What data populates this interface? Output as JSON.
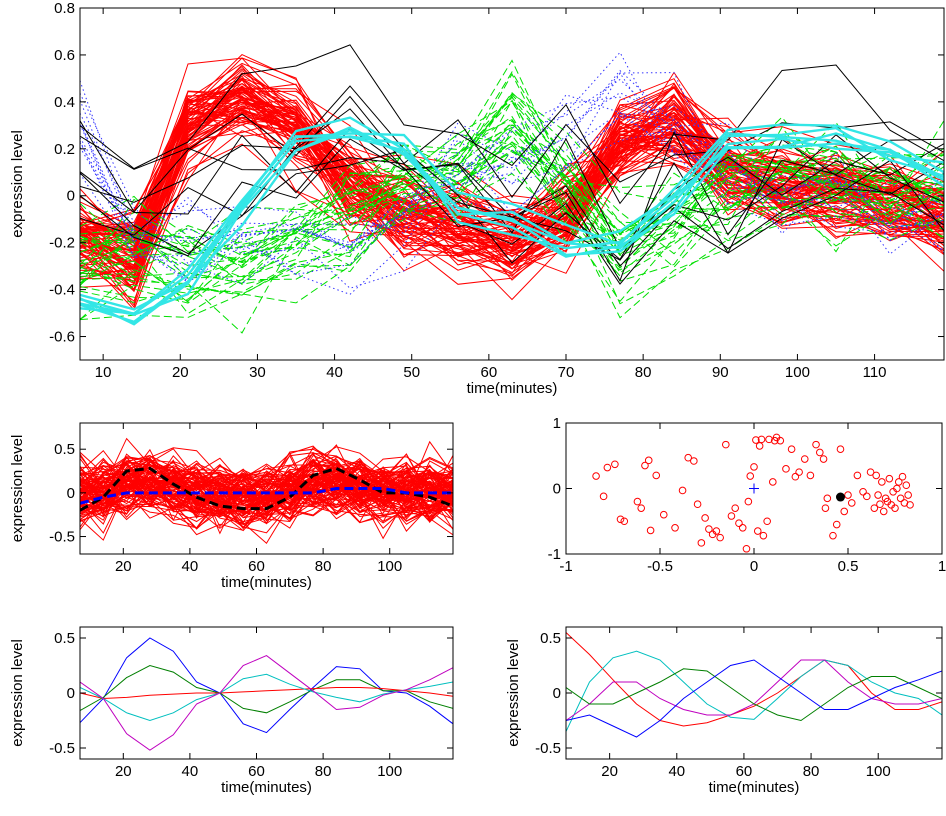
{
  "chart_data": [
    {
      "id": "top",
      "type": "line",
      "title": "",
      "xlabel": "time(minutes)",
      "ylabel": "expression level",
      "xlim": [
        7,
        119
      ],
      "ylim": [
        -0.7,
        0.8
      ],
      "xticks": [
        10,
        20,
        30,
        40,
        50,
        60,
        70,
        80,
        90,
        100,
        110
      ],
      "yticks": [
        -0.6,
        -0.4,
        -0.2,
        0,
        0.2,
        0.4,
        0.6,
        0.8
      ],
      "x": [
        7,
        14,
        21,
        28,
        35,
        42,
        49,
        56,
        63,
        70,
        77,
        84,
        91,
        98,
        105,
        112,
        119
      ],
      "groups": [
        {
          "color": "#ff0000",
          "style": "solid",
          "count": 80,
          "template": [
            -0.2,
            -0.28,
            0.3,
            0.4,
            0.28,
            0.05,
            -0.1,
            -0.15,
            -0.2,
            -0.1,
            0.2,
            0.3,
            0.1,
            0.03,
            0.02,
            -0.05,
            -0.1
          ],
          "noise": 0.12
        },
        {
          "color": "#00e000",
          "style": "dashed",
          "count": 30,
          "template": [
            -0.3,
            -0.25,
            -0.3,
            -0.3,
            -0.2,
            -0.1,
            0.05,
            0.1,
            0.3,
            0.05,
            -0.2,
            -0.1,
            0.0,
            0.08,
            0.05,
            0.05,
            0.05
          ],
          "noise": 0.15
        },
        {
          "color": "#3333ff",
          "style": "dotted",
          "count": 12,
          "template": [
            0.3,
            -0.2,
            -0.2,
            -0.2,
            -0.15,
            -0.2,
            -0.1,
            0.1,
            0.1,
            0.3,
            0.5,
            0.3,
            0.1,
            0.0,
            0.0,
            -0.1,
            -0.1
          ],
          "noise": 0.15
        },
        {
          "color": "#000000",
          "style": "solid",
          "count": 8,
          "template": [
            0.2,
            0.0,
            0.0,
            0.1,
            0.2,
            0.25,
            0.2,
            0.05,
            -0.05,
            0.0,
            -0.2,
            0.1,
            0.0,
            0.1,
            0.2,
            0.1,
            0.1
          ],
          "noise": 0.2
        },
        {
          "color": "#33e6e6",
          "style": "thick",
          "count": 6,
          "template": [
            -0.45,
            -0.5,
            -0.35,
            -0.05,
            0.25,
            0.3,
            0.2,
            -0.05,
            -0.1,
            -0.2,
            -0.2,
            0.0,
            0.22,
            0.25,
            0.25,
            0.2,
            0.1
          ],
          "noise": 0.05
        }
      ]
    },
    {
      "id": "mid-left",
      "type": "line",
      "title": "",
      "xlabel": "time(minutes)",
      "ylabel": "expression level",
      "xlim": [
        7,
        119
      ],
      "ylim": [
        -0.7,
        0.8
      ],
      "xticks": [
        20,
        40,
        60,
        80,
        100
      ],
      "yticks": [
        -0.5,
        0,
        0.5
      ],
      "x": [
        7,
        14,
        21,
        28,
        35,
        42,
        49,
        56,
        63,
        70,
        77,
        84,
        91,
        98,
        105,
        112,
        119
      ],
      "groups": [
        {
          "color": "#ff0000",
          "style": "solid",
          "count": 110,
          "template": [
            0.0,
            0.0,
            0.1,
            0.1,
            0.05,
            0.0,
            -0.05,
            -0.05,
            -0.05,
            0.0,
            0.1,
            0.1,
            0.05,
            0.0,
            0.0,
            0.0,
            0.0
          ],
          "noise": 0.25
        }
      ],
      "mean_series": [
        {
          "color": "#000000",
          "style": "dashed",
          "values": [
            -0.2,
            -0.05,
            0.25,
            0.28,
            0.1,
            -0.05,
            -0.15,
            -0.18,
            -0.18,
            -0.05,
            0.2,
            0.28,
            0.15,
            0.0,
            0.0,
            -0.05,
            -0.15
          ]
        },
        {
          "color": "#0000ff",
          "style": "dashed",
          "values": [
            -0.12,
            -0.05,
            0.0,
            0.0,
            0.0,
            0.0,
            0.0,
            0.0,
            0.0,
            0.0,
            0.0,
            0.05,
            0.05,
            0.05,
            0.0,
            0.0,
            0.0
          ]
        }
      ]
    },
    {
      "id": "mid-right",
      "type": "scatter",
      "title": "",
      "xlabel": "",
      "ylabel": "",
      "xlim": [
        -1,
        1
      ],
      "ylim": [
        -1,
        1
      ],
      "xticks": [
        -1,
        -0.5,
        0,
        0.5,
        1
      ],
      "yticks": [
        -1,
        0,
        1
      ],
      "points": [
        [
          -0.84,
          0.19
        ],
        [
          -0.8,
          -0.12
        ],
        [
          -0.78,
          0.32
        ],
        [
          -0.74,
          0.37
        ],
        [
          -0.71,
          -0.47
        ],
        [
          -0.69,
          -0.5
        ],
        [
          -0.62,
          -0.2
        ],
        [
          -0.6,
          -0.3
        ],
        [
          -0.58,
          0.35
        ],
        [
          -0.56,
          0.43
        ],
        [
          -0.55,
          -0.64
        ],
        [
          -0.52,
          0.2
        ],
        [
          -0.48,
          -0.4
        ],
        [
          -0.42,
          -0.6
        ],
        [
          -0.38,
          -0.03
        ],
        [
          -0.35,
          0.47
        ],
        [
          -0.32,
          0.42
        ],
        [
          -0.3,
          -0.24
        ],
        [
          -0.28,
          -0.83
        ],
        [
          -0.26,
          -0.45
        ],
        [
          -0.24,
          -0.62
        ],
        [
          -0.22,
          -0.7
        ],
        [
          -0.2,
          -0.65
        ],
        [
          -0.18,
          -0.75
        ],
        [
          -0.15,
          0.67
        ],
        [
          -0.12,
          -0.42
        ],
        [
          -0.1,
          -0.3
        ],
        [
          -0.08,
          -0.53
        ],
        [
          -0.06,
          -0.6
        ],
        [
          -0.04,
          -0.92
        ],
        [
          -0.03,
          -0.2
        ],
        [
          -0.02,
          0.19
        ],
        [
          0.0,
          0.33
        ],
        [
          0.01,
          0.74
        ],
        [
          0.02,
          -0.65
        ],
        [
          0.03,
          0.65
        ],
        [
          0.04,
          0.75
        ],
        [
          0.05,
          -0.72
        ],
        [
          0.07,
          -0.5
        ],
        [
          0.08,
          0.75
        ],
        [
          0.1,
          0.1
        ],
        [
          0.11,
          0.73
        ],
        [
          0.12,
          0.78
        ],
        [
          0.14,
          0.73
        ],
        [
          0.17,
          0.3
        ],
        [
          0.2,
          0.6
        ],
        [
          0.22,
          0.18
        ],
        [
          0.24,
          0.25
        ],
        [
          0.27,
          0.45
        ],
        [
          0.3,
          0.2
        ],
        [
          0.33,
          0.67
        ],
        [
          0.35,
          0.55
        ],
        [
          0.37,
          0.45
        ],
        [
          0.38,
          -0.3
        ],
        [
          0.39,
          -0.15
        ],
        [
          0.42,
          -0.72
        ],
        [
          0.44,
          -0.55
        ],
        [
          0.46,
          0.6
        ],
        [
          0.48,
          -0.35
        ],
        [
          0.5,
          -0.1
        ],
        [
          0.52,
          -0.22
        ],
        [
          0.55,
          0.2
        ],
        [
          0.58,
          -0.05
        ],
        [
          0.6,
          -0.12
        ],
        [
          0.62,
          0.25
        ],
        [
          0.64,
          -0.3
        ],
        [
          0.65,
          0.2
        ],
        [
          0.66,
          -0.1
        ],
        [
          0.67,
          -0.24
        ],
        [
          0.68,
          0.1
        ],
        [
          0.69,
          -0.35
        ],
        [
          0.7,
          -0.15
        ],
        [
          0.71,
          -0.2
        ],
        [
          0.72,
          0.15
        ],
        [
          0.73,
          -0.25
        ],
        [
          0.74,
          -0.05
        ],
        [
          0.75,
          -0.3
        ],
        [
          0.76,
          0.0
        ],
        [
          0.77,
          0.1
        ],
        [
          0.78,
          -0.15
        ],
        [
          0.79,
          0.18
        ],
        [
          0.8,
          -0.22
        ],
        [
          0.81,
          0.05
        ],
        [
          0.82,
          -0.1
        ],
        [
          0.83,
          -0.25
        ]
      ],
      "marker_color": "#ff0000",
      "origin_marker": {
        "x": 0.0,
        "y": 0.0,
        "color": "#0000ff"
      },
      "highlight": {
        "x": 0.46,
        "y": -0.13,
        "color": "#000000"
      }
    },
    {
      "id": "bottom-left",
      "type": "line",
      "title": "",
      "xlabel": "time(minutes)",
      "ylabel": "expression level",
      "xlim": [
        7,
        119
      ],
      "ylim": [
        -0.6,
        0.6
      ],
      "xticks": [
        20,
        40,
        60,
        80,
        100
      ],
      "yticks": [
        -0.5,
        0,
        0.5
      ],
      "x": [
        7,
        14,
        21,
        28,
        35,
        42,
        49,
        56,
        63,
        70,
        77,
        84,
        91,
        98,
        105,
        112,
        119
      ],
      "series": [
        {
          "color": "#0000ff",
          "values": [
            -0.27,
            -0.05,
            0.32,
            0.5,
            0.38,
            0.1,
            0.0,
            -0.28,
            -0.36,
            -0.15,
            0.05,
            0.24,
            0.22,
            0.02,
            0.0,
            -0.12,
            -0.28
          ]
        },
        {
          "color": "#007f00",
          "values": [
            -0.16,
            -0.04,
            0.14,
            0.25,
            0.19,
            0.05,
            0.0,
            -0.14,
            -0.18,
            -0.08,
            0.03,
            0.12,
            0.12,
            0.02,
            0.02,
            -0.08,
            -0.14
          ]
        },
        {
          "color": "#ff0000",
          "values": [
            0.0,
            -0.05,
            -0.04,
            -0.02,
            -0.01,
            0.0,
            0.0,
            0.01,
            0.02,
            0.03,
            0.04,
            0.05,
            0.05,
            0.04,
            0.02,
            0.0,
            -0.03
          ]
        },
        {
          "color": "#00bfbf",
          "values": [
            0.05,
            -0.05,
            -0.18,
            -0.25,
            -0.18,
            -0.06,
            0.0,
            0.13,
            0.17,
            0.08,
            0.01,
            -0.04,
            -0.08,
            -0.01,
            0.03,
            0.06,
            0.1
          ]
        },
        {
          "color": "#bf00bf",
          "values": [
            0.1,
            -0.05,
            -0.37,
            -0.52,
            -0.38,
            -0.1,
            0.0,
            0.25,
            0.34,
            0.18,
            0.02,
            -0.15,
            -0.13,
            -0.02,
            0.03,
            0.12,
            0.23
          ]
        }
      ]
    },
    {
      "id": "bottom-right",
      "type": "line",
      "title": "",
      "xlabel": "time(minutes)",
      "ylabel": "expression level",
      "xlim": [
        7,
        119
      ],
      "ylim": [
        -0.6,
        0.6
      ],
      "xticks": [
        20,
        40,
        60,
        80,
        100
      ],
      "yticks": [
        -0.5,
        0,
        0.5
      ],
      "x": [
        7,
        14,
        21,
        28,
        35,
        42,
        49,
        56,
        63,
        70,
        77,
        84,
        91,
        98,
        105,
        112,
        119
      ],
      "series": [
        {
          "color": "#ff0000",
          "values": [
            0.55,
            0.35,
            0.12,
            -0.1,
            -0.25,
            -0.3,
            -0.27,
            -0.2,
            -0.12,
            0.0,
            0.15,
            0.3,
            0.25,
            0.0,
            -0.15,
            -0.15,
            -0.08
          ]
        },
        {
          "color": "#00bfbf",
          "values": [
            -0.35,
            0.1,
            0.32,
            0.38,
            0.3,
            0.1,
            -0.1,
            -0.22,
            -0.24,
            -0.05,
            0.15,
            0.3,
            0.25,
            0.1,
            0.0,
            -0.05,
            -0.2
          ]
        },
        {
          "color": "#bf00bf",
          "values": [
            -0.25,
            -0.1,
            0.1,
            0.1,
            -0.05,
            -0.15,
            -0.2,
            -0.2,
            -0.1,
            0.1,
            0.3,
            0.3,
            0.1,
            -0.05,
            -0.1,
            -0.1,
            -0.05
          ]
        },
        {
          "color": "#007f00",
          "values": [
            0.05,
            -0.1,
            -0.1,
            0.0,
            0.1,
            0.22,
            0.2,
            0.05,
            -0.1,
            -0.2,
            -0.25,
            -0.1,
            0.05,
            0.15,
            0.15,
            0.05,
            -0.05
          ]
        },
        {
          "color": "#0000ff",
          "values": [
            -0.25,
            -0.2,
            -0.3,
            -0.4,
            -0.25,
            -0.05,
            0.1,
            0.25,
            0.3,
            0.15,
            0.0,
            -0.15,
            -0.15,
            -0.05,
            0.05,
            0.12,
            0.2
          ]
        }
      ]
    }
  ]
}
